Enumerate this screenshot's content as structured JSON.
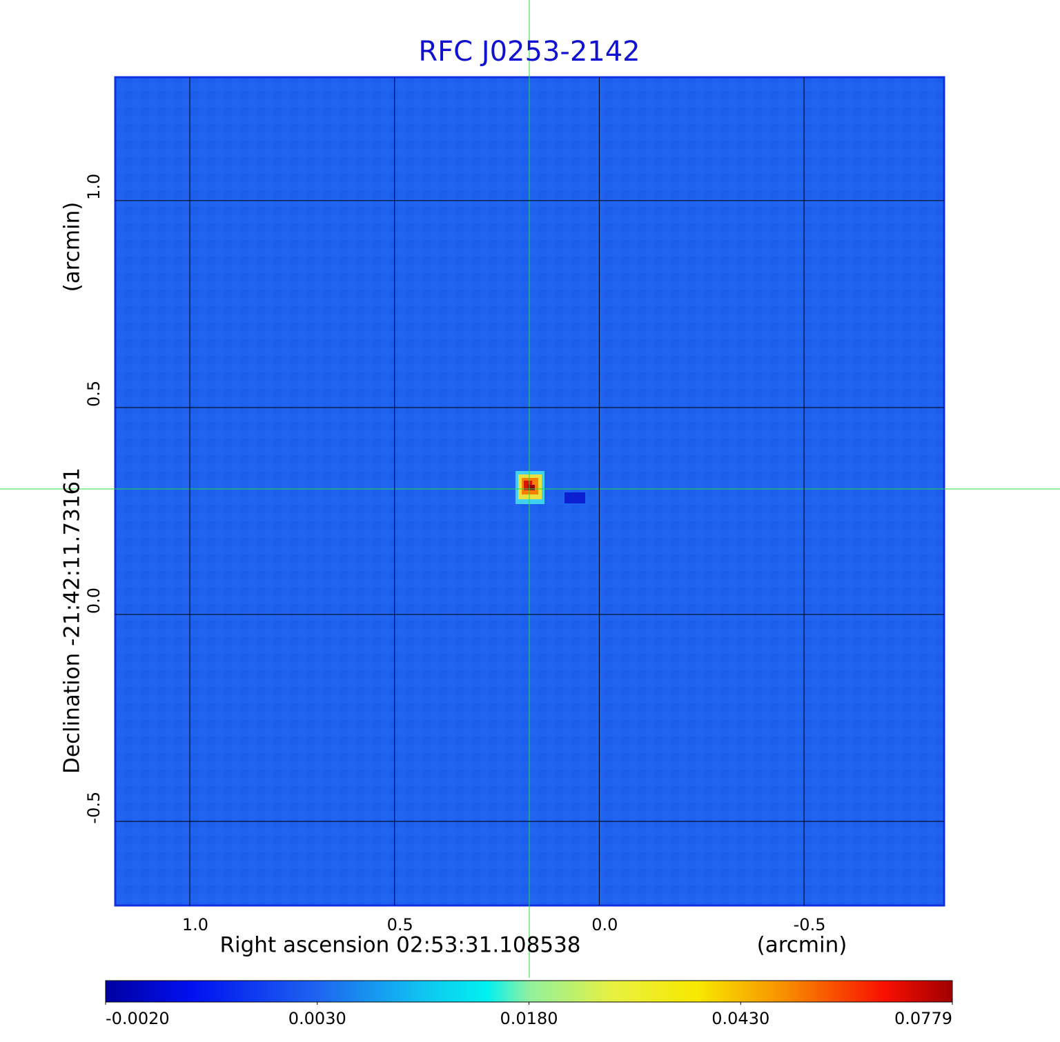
{
  "chart_data": {
    "type": "image",
    "title": "RFC J0253-2142",
    "x_label": "Right ascension  02:53:31.108538",
    "x_unit": "(arcmin)",
    "y_label": "Declination  -21:42:11.73161",
    "y_unit": "(arcmin)",
    "xlim": [
      1.182,
      -0.842
    ],
    "ylim": [
      -0.703,
      1.298
    ],
    "xticks": [
      {
        "value": 1,
        "label": "1.0"
      },
      0.5,
      {
        "value": 0,
        "label": "0.0"
      },
      -0.5
    ],
    "yticks": [
      {
        "value": 1,
        "label": "1.0"
      },
      0.5,
      {
        "value": 0,
        "label": "0.0"
      },
      -0.5
    ],
    "grid": true,
    "colorbar_ticks": [
      {
        "value": -0.002,
        "label": "-0.0020"
      },
      {
        "value": 0.003,
        "label": "0.0030"
      },
      {
        "value": 0.018,
        "label": "0.0180"
      },
      {
        "value": 0.043,
        "label": "0.0430"
      },
      {
        "value": 0.0779,
        "label": "0.0779"
      }
    ]
  }
}
